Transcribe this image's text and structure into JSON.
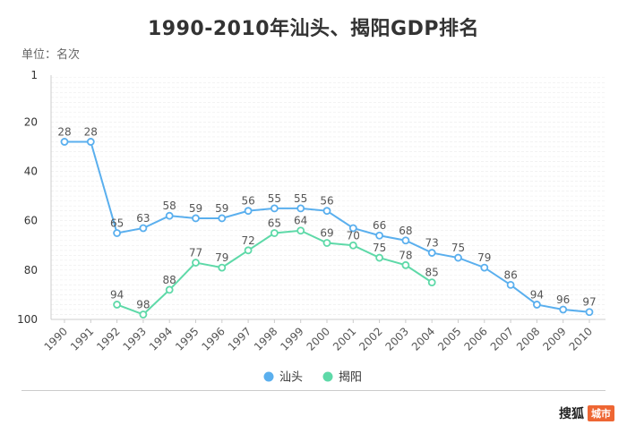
{
  "chart_data": {
    "type": "line",
    "title": "1990-2010年汕头、揭阳GDP排名",
    "unit_label": "单位：名次",
    "categories": [
      "1990",
      "1991",
      "1992",
      "1993",
      "1994",
      "1995",
      "1996",
      "1997",
      "1998",
      "1999",
      "2000",
      "2001",
      "2002",
      "2003",
      "2004",
      "2005",
      "2006",
      "2007",
      "2008",
      "2009",
      "2010"
    ],
    "y_axis": {
      "ticks": [
        1,
        20,
        40,
        60,
        80,
        100
      ],
      "range": [
        1,
        100
      ],
      "inverted": true
    },
    "grid": true,
    "legend_position": "bottom",
    "series": [
      {
        "name": "汕头",
        "color": "#5aafee",
        "values": [
          28,
          28,
          65,
          63,
          58,
          59,
          59,
          56,
          55,
          55,
          56,
          63,
          66,
          68,
          73,
          75,
          79,
          86,
          94,
          96,
          97
        ],
        "labels": [
          "28",
          "28",
          "65",
          "63",
          "58",
          "59",
          "59",
          "56",
          "55",
          "55",
          "56",
          "",
          "66",
          "68",
          "73",
          "75",
          "79",
          "86",
          "94",
          "96",
          "97"
        ]
      },
      {
        "name": "揭阳",
        "color": "#5ed9a8",
        "values": [
          null,
          null,
          94,
          98,
          88,
          77,
          79,
          72,
          65,
          64,
          69,
          70,
          75,
          78,
          85,
          null,
          null,
          null,
          null,
          null,
          null
        ],
        "labels": [
          "",
          "",
          "94",
          "98",
          "88",
          "77",
          "79",
          "72",
          "65",
          "64",
          "69",
          "70",
          "75",
          "78",
          "85",
          "",
          "",
          "",
          "",
          "",
          ""
        ]
      }
    ]
  },
  "watermark": {
    "brand": "搜狐",
    "badge": "城市"
  }
}
